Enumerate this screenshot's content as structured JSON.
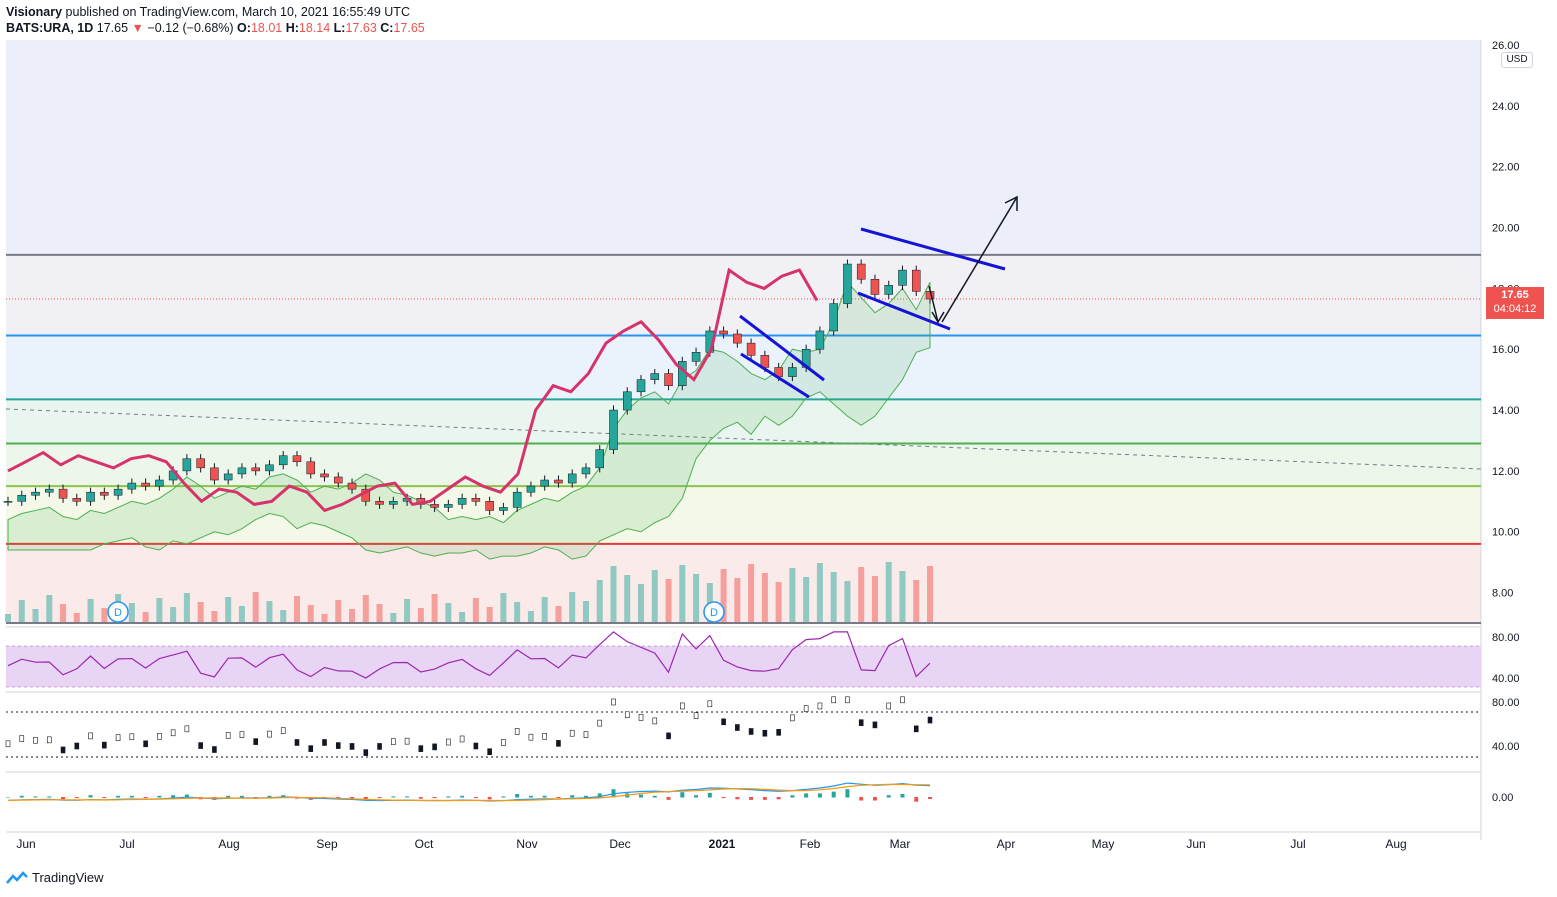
{
  "header": {
    "publisher": "Visionary",
    "published_text": "published on TradingView.com, March 10, 2021 16:55:49 UTC",
    "symbol": "BATS:URA, 1D",
    "last": "17.65",
    "change": "−0.12 (−0.68%)",
    "o_label": "O:",
    "o_value": "18.01",
    "h_label": "H:",
    "h_value": "18.14",
    "l_label": "L:",
    "l_value": "17.63",
    "c_label": "C:",
    "c_value": "17.65"
  },
  "currency_badge": "USD",
  "price_badge": {
    "price": "17.65",
    "countdown": "04:04:12"
  },
  "footer": {
    "brand": "TradingView"
  },
  "colors": {
    "candle_up": "#26a69a",
    "candle_down": "#ef5350",
    "comparison_line": "#d6336c",
    "ichimoku_cloud": "#4caf50",
    "pattern_lines": "#1414d6",
    "rsi_line": "#9c27b0",
    "rsi_band": "#e8d5f5",
    "macd_line": "#2196f3",
    "signal_line": "#ff9800"
  },
  "chart_data": {
    "type": "line",
    "instrument": "BATS:URA",
    "interval": "1D",
    "x_tick_labels": [
      "Jun",
      "Jul",
      "Aug",
      "Sep",
      "Oct",
      "Nov",
      "Dec",
      "2021",
      "Feb",
      "Mar",
      "Apr",
      "May",
      "Jun",
      "Jul",
      "Aug"
    ],
    "y_tick_labels": [
      "26.00",
      "24.00",
      "22.00",
      "20.00",
      "18.00",
      "16.00",
      "14.00",
      "12.00",
      "10.00",
      "8.00"
    ],
    "ylim": [
      7.0,
      26.0
    ],
    "scale": "linear",
    "grid": false,
    "dividend_markers": [
      "D",
      "D"
    ],
    "horizontal_levels": [
      {
        "price": 19.1,
        "color": "#787b86"
      },
      {
        "price": 16.45,
        "color": "#2196f3"
      },
      {
        "price": 14.35,
        "color": "#26a69a"
      },
      {
        "price": 12.9,
        "color": "#4caf50"
      },
      {
        "price": 11.5,
        "color": "#8bc34a"
      },
      {
        "price": 9.6,
        "color": "#e53935"
      },
      {
        "price": 7.0,
        "color": "#787b86"
      }
    ],
    "zones": [
      {
        "from": 19.1,
        "to": 26.5,
        "color": "#eceefa"
      },
      {
        "from": 16.45,
        "to": 19.1,
        "color": "#f1f1f5"
      },
      {
        "from": 14.35,
        "to": 16.45,
        "color": "#eaf2fc"
      },
      {
        "from": 12.9,
        "to": 14.35,
        "color": "#e9f6ef"
      },
      {
        "from": 11.5,
        "to": 12.9,
        "color": "#edf6ea"
      },
      {
        "from": 9.6,
        "to": 11.5,
        "color": "#f3f8e8"
      },
      {
        "from": 7.0,
        "to": 9.6,
        "color": "#fbeaea"
      }
    ],
    "series": [
      {
        "name": "",
        "values": [
          11.0,
          11.2,
          11.3,
          11.4,
          11.1,
          11.0,
          11.3,
          11.2,
          11.4,
          11.6,
          11.5,
          11.7,
          12.0,
          12.4,
          12.1,
          11.7,
          11.9,
          12.1,
          12.0,
          12.2,
          12.5,
          12.3,
          11.9,
          11.8,
          11.6,
          11.4,
          11.0,
          10.9,
          11.0,
          11.1,
          10.9,
          10.8,
          10.9,
          11.1,
          11.0,
          10.7,
          10.8,
          11.3,
          11.5,
          11.7,
          11.6,
          11.9,
          12.1,
          12.7,
          14.0,
          14.6,
          15.0,
          15.2,
          14.8,
          15.6,
          15.9,
          16.6,
          16.5,
          16.2,
          15.8,
          15.4,
          15.1,
          15.4,
          16.0,
          16.6,
          17.5,
          18.8,
          18.3,
          17.8,
          18.1,
          18.6,
          17.9,
          17.65
        ]
      },
      {
        "name": "",
        "values": [
          12.0,
          12.3,
          12.6,
          12.2,
          12.5,
          12.3,
          12.1,
          12.4,
          12.5,
          12.3,
          11.6,
          11.0,
          11.4,
          11.3,
          10.9,
          11.0,
          11.5,
          11.3,
          10.7,
          10.9,
          11.2,
          11.5,
          11.6,
          10.9,
          11.0,
          11.4,
          11.8,
          11.5,
          11.3,
          11.9,
          14.0,
          14.8,
          14.6,
          15.2,
          16.2,
          16.6,
          16.9,
          16.3,
          15.5,
          15.0,
          16.0,
          18.6,
          18.2,
          18.0,
          18.4,
          18.6,
          17.6
        ]
      }
    ],
    "projection_arrows": [
      {
        "from_price": 17.5,
        "to_price": 16.6
      },
      {
        "from_price": 16.6,
        "to_price": 21.0
      }
    ],
    "rsi": {
      "levels": [
        70,
        30
      ],
      "y_tick_labels": [
        "80.00",
        "40.00"
      ]
    },
    "oscillator": {
      "levels": [
        70,
        30
      ],
      "y_tick_labels": [
        "80.00",
        "40.00"
      ]
    },
    "macd": {
      "y_tick_labels": [
        "0.00"
      ]
    }
  }
}
